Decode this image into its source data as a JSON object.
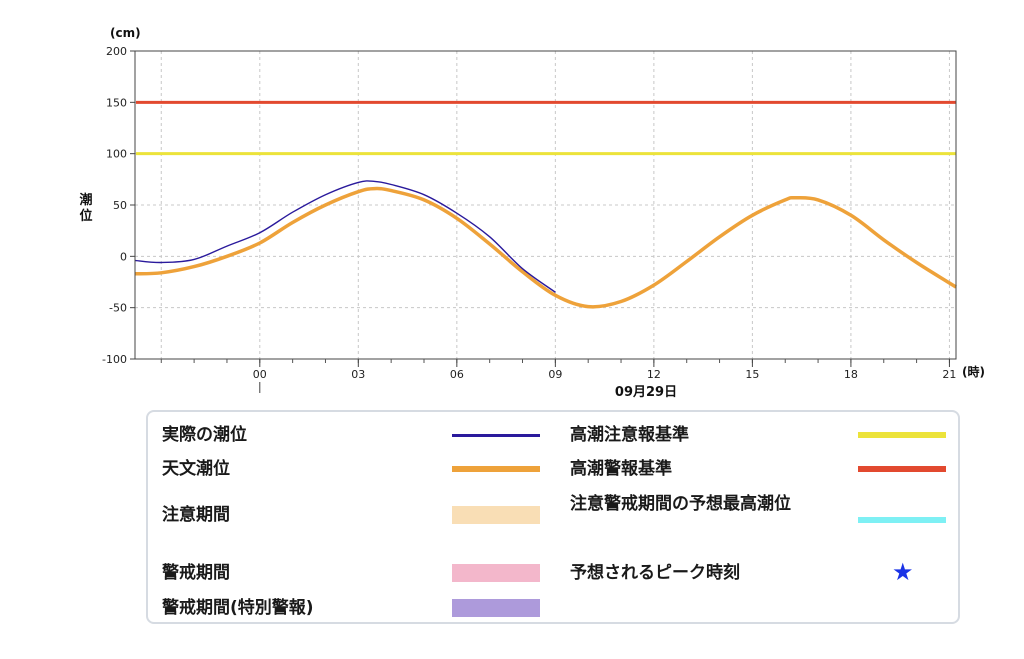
{
  "chart_data": {
    "type": "line",
    "yunit": "(cm)",
    "xunit": "(時)",
    "ylabel": "潮位",
    "date_label": "09月29日",
    "ylim": [
      -100,
      200
    ],
    "yticks": [
      200,
      150,
      100,
      50,
      0,
      -50,
      -100
    ],
    "xlim_hours": [
      -3.8,
      21.2
    ],
    "xticks": [
      {
        "hour": 0,
        "label": "00"
      },
      {
        "hour": 3,
        "label": "03"
      },
      {
        "hour": 6,
        "label": "06"
      },
      {
        "hour": 9,
        "label": "09"
      },
      {
        "hour": 12,
        "label": "12"
      },
      {
        "hour": 15,
        "label": "15"
      },
      {
        "hour": 18,
        "label": "18"
      },
      {
        "hour": 21,
        "label": "21"
      }
    ],
    "grid": true,
    "thresholds": [
      {
        "name": "高潮警報基準",
        "value": 150,
        "color": "#e2492f"
      },
      {
        "name": "高潮注意報基準",
        "value": 100,
        "color": "#ece33a"
      }
    ],
    "series": [
      {
        "name": "天文潮位",
        "color": "#eea23a",
        "x": [
          -3.8,
          -3,
          -2,
          -1,
          0,
          1,
          2,
          3,
          3.5,
          4,
          5,
          6,
          7,
          8,
          9,
          10,
          11,
          12,
          13,
          14,
          15,
          16,
          16.3,
          17,
          18,
          19,
          20,
          21,
          21.2
        ],
        "y": [
          -17,
          -16,
          -10,
          0,
          13,
          33,
          50,
          63,
          66,
          64,
          55,
          37,
          12,
          -15,
          -38,
          -49,
          -44,
          -28,
          -5,
          19,
          40,
          55,
          57,
          55,
          40,
          16,
          -6,
          -26,
          -30
        ]
      },
      {
        "name": "実際の潮位",
        "color": "#2a1a9c",
        "x": [
          -3.8,
          -3,
          -2,
          -1,
          0,
          1,
          2,
          3,
          3.5,
          4,
          5,
          6,
          7,
          8,
          9
        ],
        "y": [
          -4,
          -6,
          -3,
          10,
          23,
          43,
          60,
          72,
          73,
          70,
          60,
          42,
          19,
          -12,
          -35
        ]
      }
    ]
  },
  "legend": {
    "left": [
      {
        "label": "実際の潮位",
        "swatch": "line",
        "color": "#2a1a9c"
      },
      {
        "label": "天文潮位",
        "swatch": "line",
        "color": "#eea23a"
      },
      {
        "label": "注意期間",
        "swatch": "band",
        "color": "#f9deb5"
      },
      {
        "label": "警戒期間",
        "swatch": "band",
        "color": "#f3b7cb"
      },
      {
        "label": "警戒期間(特別警報)",
        "swatch": "band",
        "color": "#ad9adb"
      }
    ],
    "right": [
      {
        "label": "高潮注意報基準",
        "swatch": "line",
        "color": "#ece33a"
      },
      {
        "label": "高潮警報基準",
        "swatch": "line",
        "color": "#e2492f"
      },
      {
        "label": "注意警戒期間の予想最高潮位",
        "swatch": "line",
        "color": "#7ef0f4"
      },
      {
        "label": "予想されるピーク時刻",
        "swatch": "star",
        "color": "#1a33e6",
        "icon": "★"
      }
    ]
  }
}
